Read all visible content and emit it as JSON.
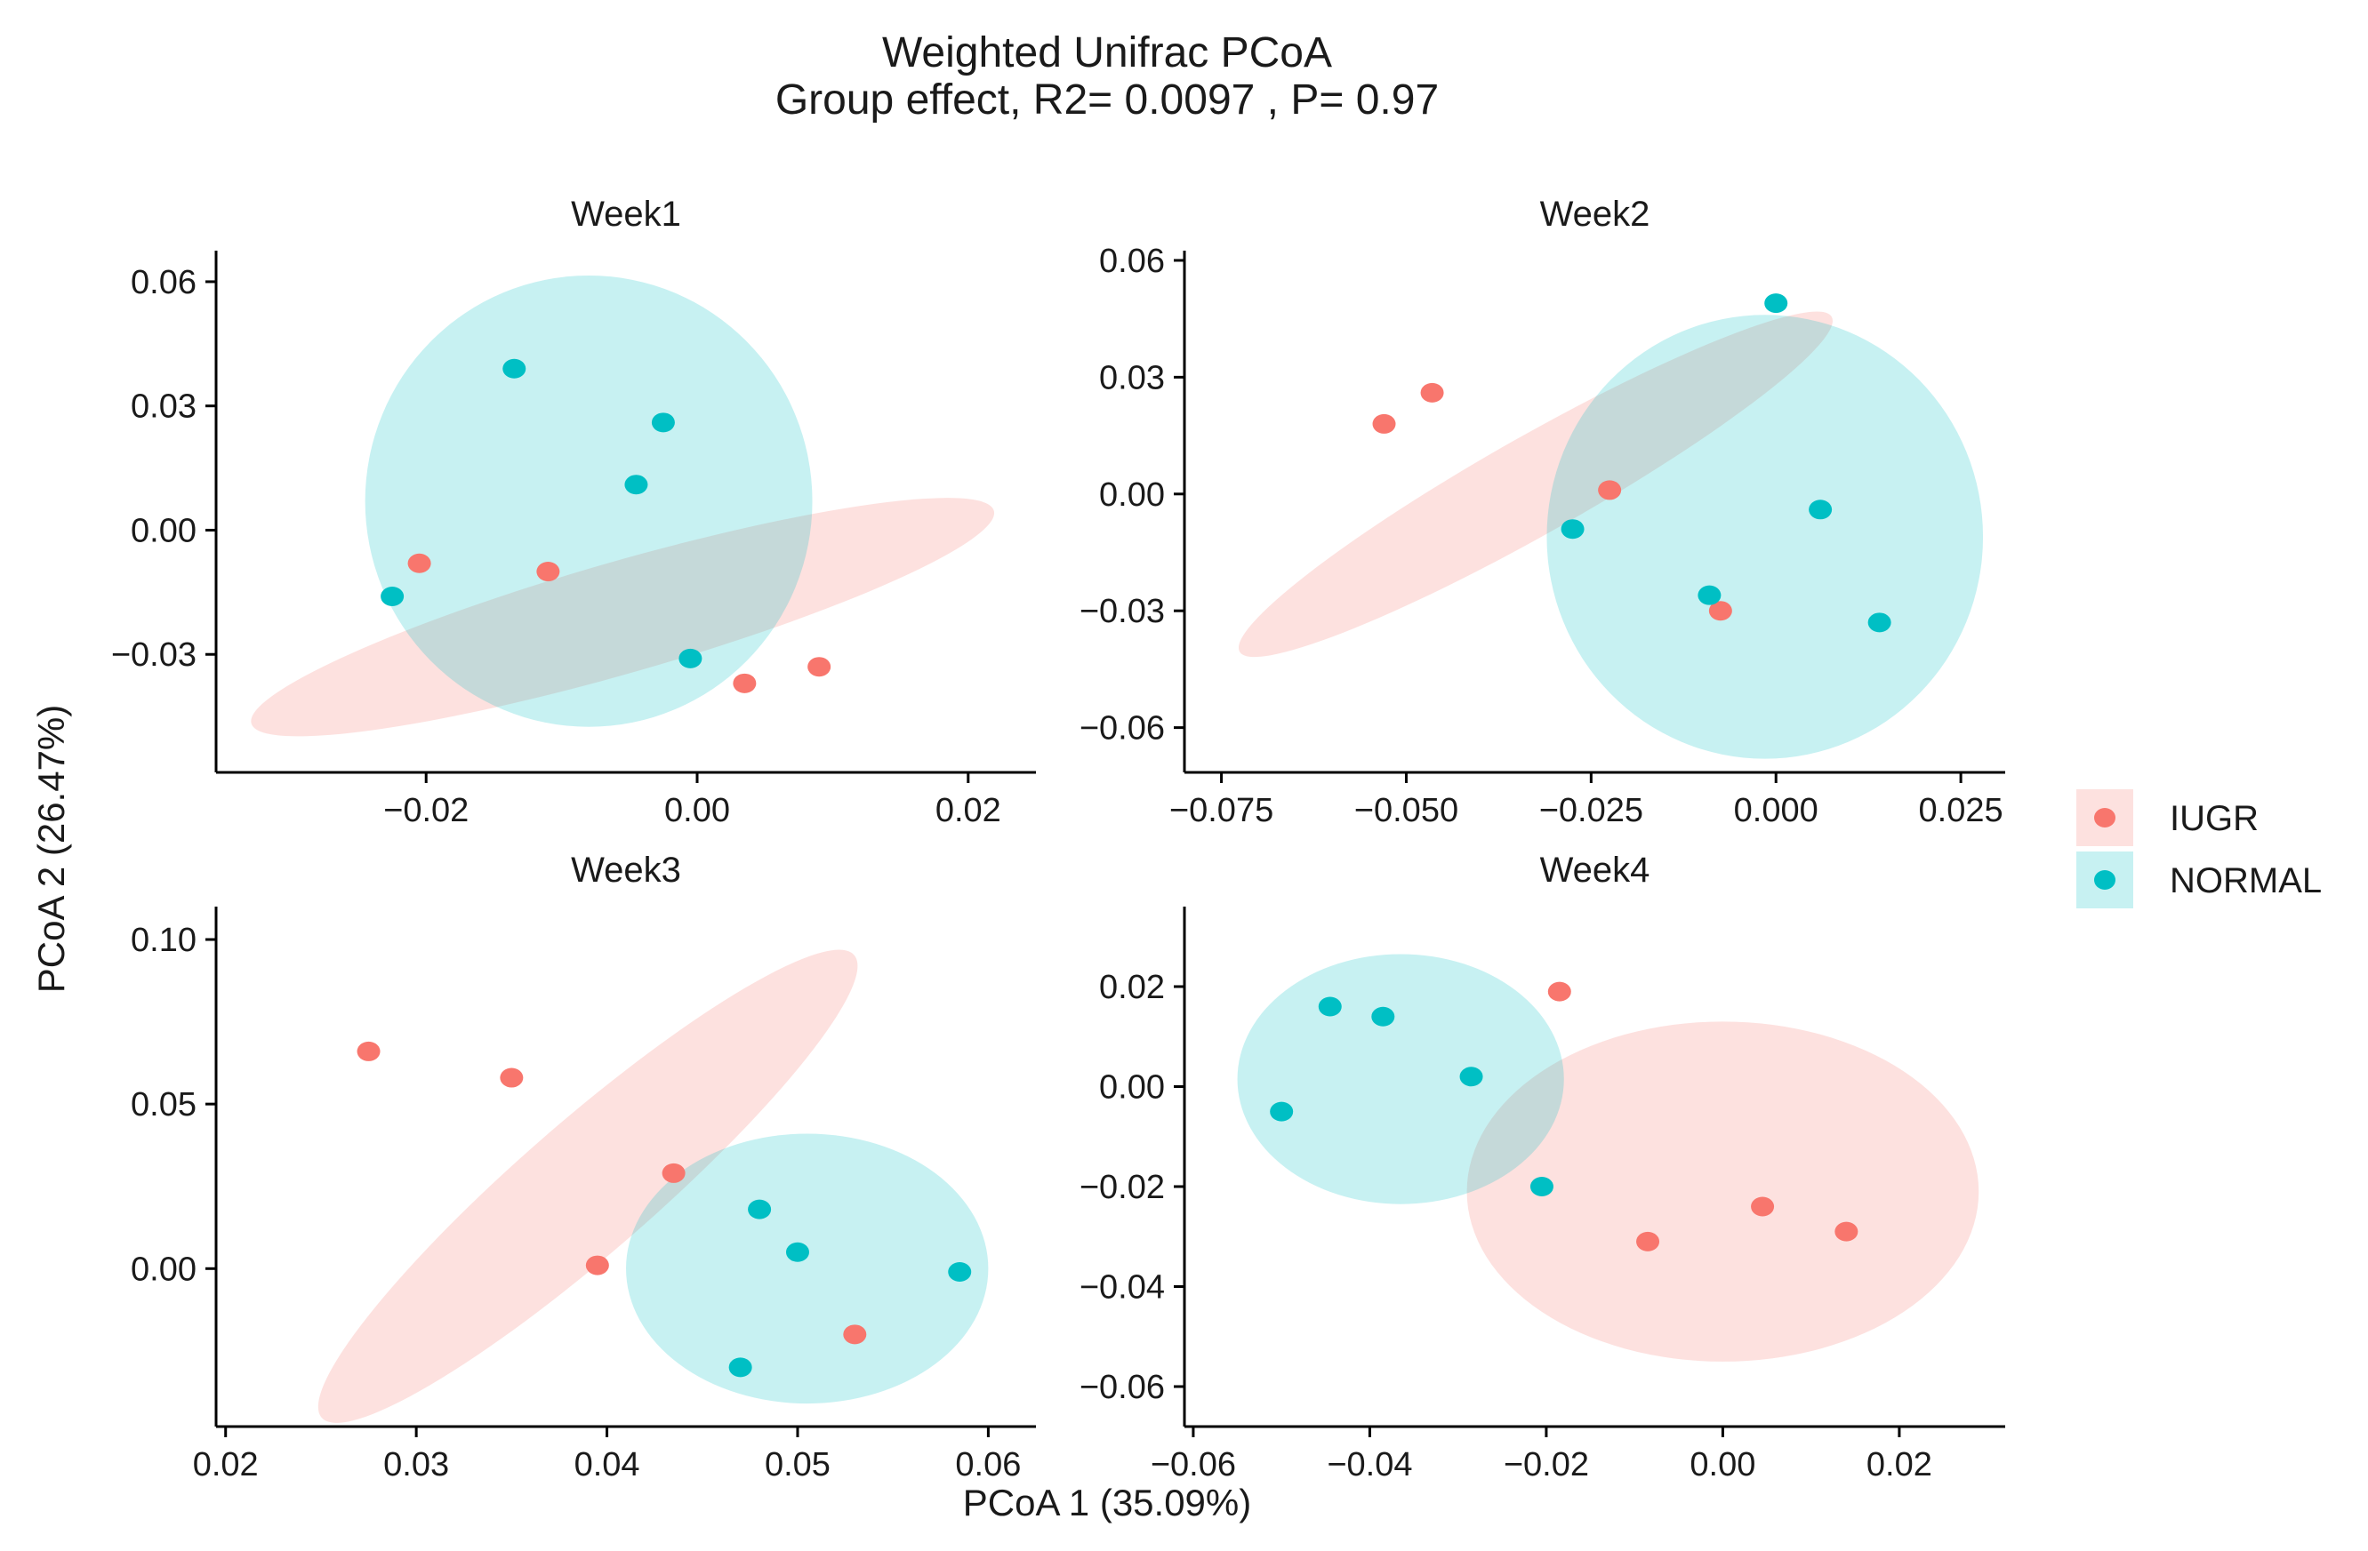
{
  "chart_data": {
    "type": "scatter",
    "title": "Weighted Unifrac  PCoA",
    "subtitle": "Group effect, R2= 0.0097 , P= 0.97",
    "xlabel": "PCoA 1 (35.09%)",
    "ylabel": "PCoA 2 (26.47%)",
    "legend": {
      "placement": "right",
      "entries": [
        {
          "name": "IUGR",
          "color": "#F8766D"
        },
        {
          "name": "NORMAL",
          "color": "#00BFC4"
        }
      ]
    },
    "grid": false,
    "panels": [
      {
        "name": "Week1",
        "xlim": [
          -0.0355,
          0.025
        ],
        "ylim": [
          -0.0585,
          0.0675
        ],
        "xticks": [
          -0.02,
          0.0,
          0.02
        ],
        "xtick_labels": [
          "−0.02",
          "0.00",
          "0.02"
        ],
        "yticks": [
          -0.03,
          0.0,
          0.03,
          0.06
        ],
        "ytick_labels": [
          "−0.03",
          "0.00",
          "0.03",
          "0.06"
        ],
        "series": [
          {
            "name": "IUGR",
            "points": [
              [
                -0.0205,
                -0.008
              ],
              [
                -0.011,
                -0.01
              ],
              [
                0.0035,
                -0.037
              ],
              [
                0.009,
                -0.033
              ]
            ],
            "ellipse": {
              "cx": -0.0055,
              "cy": -0.021,
              "rx": 0.0285,
              "ry": 0.0135,
              "angle": -16
            }
          },
          {
            "name": "NORMAL",
            "points": [
              [
                -0.0135,
                0.039
              ],
              [
                -0.0025,
                0.026
              ],
              [
                -0.0045,
                0.011
              ],
              [
                -0.0225,
                -0.016
              ],
              [
                -0.0005,
                -0.031
              ]
            ],
            "ellipse": {
              "cx": -0.008,
              "cy": 0.007,
              "rx": 0.0165,
              "ry": 0.0545,
              "angle": 0
            }
          }
        ]
      },
      {
        "name": "Week2",
        "xlim": [
          -0.08,
          0.031
        ],
        "ylim": [
          -0.0715,
          0.0625
        ],
        "xticks": [
          -0.075,
          -0.05,
          -0.025,
          0.0,
          0.025
        ],
        "xtick_labels": [
          "−0.075",
          "−0.050",
          "−0.025",
          "0.000",
          "0.025"
        ],
        "yticks": [
          -0.06,
          -0.03,
          0.0,
          0.03,
          0.06
        ],
        "ytick_labels": [
          "−0.06",
          "−0.03",
          "0.00",
          "0.03",
          "0.06"
        ],
        "series": [
          {
            "name": "IUGR",
            "points": [
              [
                -0.053,
                0.018
              ],
              [
                -0.0465,
                0.026
              ],
              [
                -0.0225,
                0.001
              ],
              [
                -0.0075,
                -0.03
              ]
            ],
            "ellipse": {
              "cx": -0.0325,
              "cy": 0.0025,
              "rx": 0.046,
              "ry": 0.0125,
              "angle": -29.5
            }
          },
          {
            "name": "NORMAL",
            "points": [
              [
                0.0,
                0.049
              ],
              [
                0.006,
                -0.004
              ],
              [
                -0.0275,
                -0.009
              ],
              [
                -0.009,
                -0.026
              ],
              [
                0.014,
                -0.033
              ]
            ],
            "ellipse": {
              "cx": -0.0015,
              "cy": -0.011,
              "rx": 0.0295,
              "ry": 0.057,
              "angle": 0
            }
          }
        ]
      },
      {
        "name": "Week3",
        "xlim": [
          0.0195,
          0.0625
        ],
        "ylim": [
          -0.048,
          0.11
        ],
        "xticks": [
          0.02,
          0.03,
          0.04,
          0.05,
          0.06
        ],
        "xtick_labels": [
          "0.02",
          "0.03",
          "0.04",
          "0.05",
          "0.06"
        ],
        "yticks": [
          0.0,
          0.05,
          0.1
        ],
        "ytick_labels": [
          "0.00",
          "0.05",
          "0.10"
        ],
        "series": [
          {
            "name": "IUGR",
            "points": [
              [
                0.0275,
                0.066
              ],
              [
                0.035,
                0.058
              ],
              [
                0.0435,
                0.029
              ],
              [
                0.0395,
                0.001
              ],
              [
                0.053,
                -0.02
              ]
            ],
            "ellipse": {
              "cx": 0.039,
              "cy": 0.025,
              "rx": 0.0185,
              "ry": 0.02,
              "angle": -41
            }
          },
          {
            "name": "NORMAL",
            "points": [
              [
                0.048,
                0.018
              ],
              [
                0.05,
                0.005
              ],
              [
                0.0585,
                -0.001
              ],
              [
                0.047,
                -0.03
              ]
            ],
            "ellipse": {
              "cx": 0.0505,
              "cy": 0.0,
              "rx": 0.0095,
              "ry": 0.041,
              "angle": 0
            }
          }
        ]
      },
      {
        "name": "Week4",
        "xlim": [
          -0.061,
          0.032
        ],
        "ylim": [
          -0.068,
          0.036
        ],
        "xticks": [
          -0.06,
          -0.04,
          -0.02,
          0.0,
          0.02
        ],
        "xtick_labels": [
          "−0.06",
          "−0.04",
          "−0.02",
          "0.00",
          "0.02"
        ],
        "yticks": [
          -0.06,
          -0.04,
          -0.02,
          0.0,
          0.02
        ],
        "ytick_labels": [
          "−0.06",
          "−0.04",
          "−0.02",
          "0.00",
          "0.02"
        ],
        "series": [
          {
            "name": "IUGR",
            "points": [
              [
                -0.0185,
                0.019
              ],
              [
                -0.0085,
                -0.031
              ],
              [
                0.0045,
                -0.024
              ],
              [
                0.014,
                -0.029
              ]
            ],
            "ellipse": {
              "cx": 0.0,
              "cy": -0.021,
              "rx": 0.029,
              "ry": 0.034,
              "angle": 0
            }
          },
          {
            "name": "NORMAL",
            "points": [
              [
                -0.0445,
                0.016
              ],
              [
                -0.0385,
                0.014
              ],
              [
                -0.0285,
                0.002
              ],
              [
                -0.05,
                -0.005
              ],
              [
                -0.0205,
                -0.02
              ]
            ],
            "ellipse": {
              "cx": -0.0365,
              "cy": 0.0015,
              "rx": 0.0185,
              "ry": 0.025,
              "angle": 0
            }
          }
        ]
      }
    ]
  }
}
